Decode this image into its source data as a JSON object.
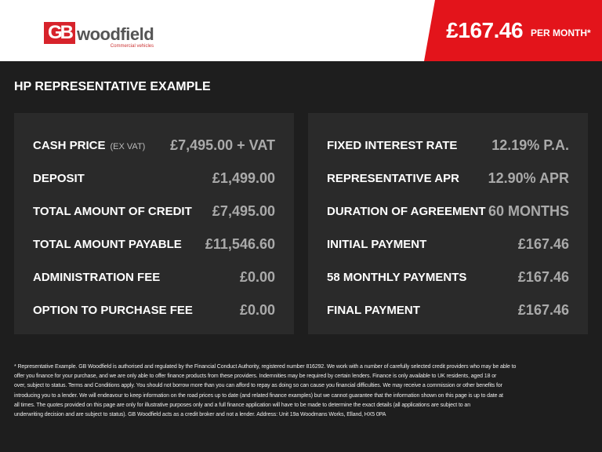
{
  "header": {
    "logo_text": "GBwoodfield",
    "logo_subtitle": "Commercial vehicles",
    "price": "£167.46",
    "price_suffix": "PER MONTH*",
    "accent": "#e3141b"
  },
  "title": "HP REPRESENTATIVE EXAMPLE",
  "left": [
    {
      "label": "CASH PRICE",
      "note": "(EX VAT)",
      "value": "£7,495.00 + VAT"
    },
    {
      "label": "DEPOSIT",
      "value": "£1,499.00"
    },
    {
      "label": "TOTAL AMOUNT OF CREDIT",
      "value": "£7,495.00"
    },
    {
      "label": "TOTAL AMOUNT PAYABLE",
      "value": "£11,546.60"
    },
    {
      "label": "ADMINISTRATION FEE",
      "value": "£0.00"
    },
    {
      "label": "OPTION TO PURCHASE FEE",
      "value": "£0.00"
    }
  ],
  "right": [
    {
      "label": "FIXED INTEREST RATE",
      "value": "12.19% P.A."
    },
    {
      "label": "REPRESENTATIVE APR",
      "value": "12.90% APR"
    },
    {
      "label": "DURATION OF AGREEMENT",
      "value": "60 MONTHS"
    },
    {
      "label": "INITIAL PAYMENT",
      "value": "£167.46"
    },
    {
      "label": "58 MONTHLY PAYMENTS",
      "value": "£167.46"
    },
    {
      "label": "FINAL PAYMENT",
      "value": "£167.46"
    }
  ],
  "footer": [
    "* Representative Example. GB Woodfield is authorised and regulated by the Financial Conduct Authority, registered number 816292. We work with a number of carefully selected credit providers who may be able to",
    "offer you finance for your purchase, and we are only able to offer finance products from these providers. Indemnities may be required by certain lenders. Finance is only available to UK residents, aged 18 or",
    "over, subject to status. Terms and Conditions apply. You should not borrow more than you can afford to repay as doing so can cause you financial difficulties. We may receive a commission or other benefits for",
    "introducing you to a lender. We will endeavour to keep information on the road prices up to date (and related finance examples) but we cannot guarantee that the information shown on this page is up to date at",
    "all times. The quotes provided on this page are only for illustrative purposes only and a full finance application will have to be made to determine the exact details (all applications are subject to an",
    "underwriting decision and are subject to status). GB Woodfield acts as a credit broker and not a lender. Address: Unit 19a Woodmans Works, Elland, HX5 0PA"
  ]
}
